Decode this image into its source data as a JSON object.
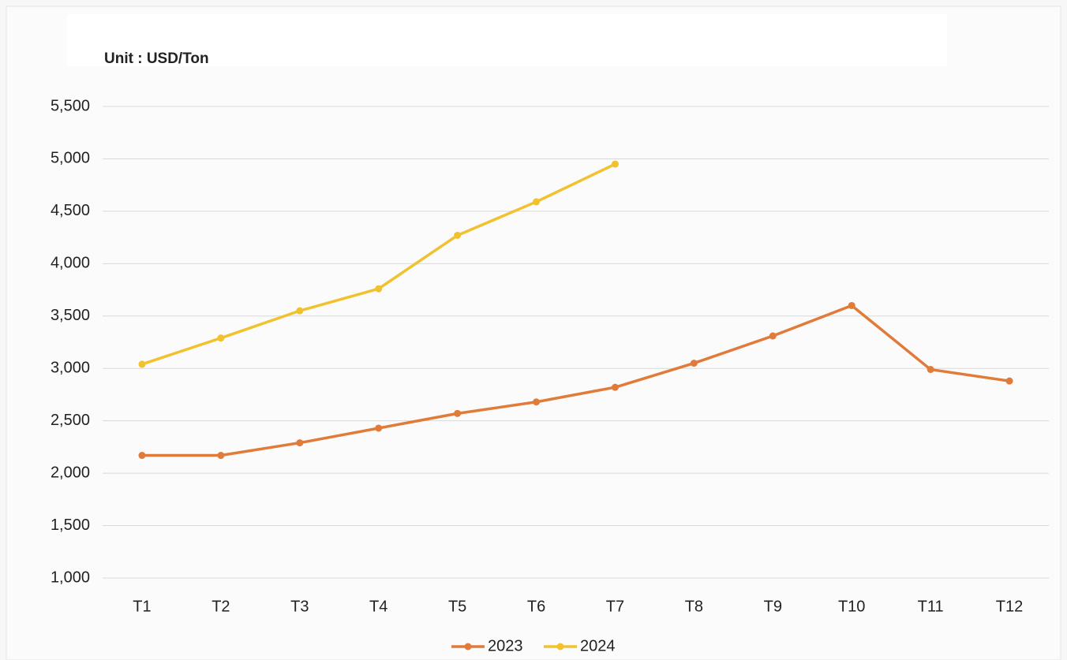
{
  "chart_data": {
    "type": "line",
    "title": "Unit : USD/Ton",
    "categories": [
      "T1",
      "T2",
      "T3",
      "T4",
      "T5",
      "T6",
      "T7",
      "T8",
      "T9",
      "T10",
      "T11",
      "T12"
    ],
    "series": [
      {
        "name": "2023",
        "color": "#e07b39",
        "values": [
          2170,
          2170,
          2290,
          2430,
          2570,
          2680,
          2820,
          3050,
          3310,
          3600,
          2990,
          2880
        ]
      },
      {
        "name": "2024",
        "color": "#f2c12e",
        "values": [
          3040,
          3290,
          3550,
          3760,
          4270,
          4590,
          4950,
          null,
          null,
          null,
          null,
          null
        ]
      }
    ],
    "ylim": [
      1000,
      5500
    ],
    "yticks": [
      {
        "value": 1000,
        "label": "1,000"
      },
      {
        "value": 1500,
        "label": "1,500"
      },
      {
        "value": 2000,
        "label": "2,000"
      },
      {
        "value": 2500,
        "label": "2,500"
      },
      {
        "value": 3000,
        "label": "3,000"
      },
      {
        "value": 3500,
        "label": "3,500"
      },
      {
        "value": 4000,
        "label": "4,000"
      },
      {
        "value": 4500,
        "label": "4,500"
      },
      {
        "value": 5000,
        "label": "5,000"
      },
      {
        "value": 5500,
        "label": "5,500"
      }
    ],
    "grid": true,
    "legend": "bottom"
  }
}
